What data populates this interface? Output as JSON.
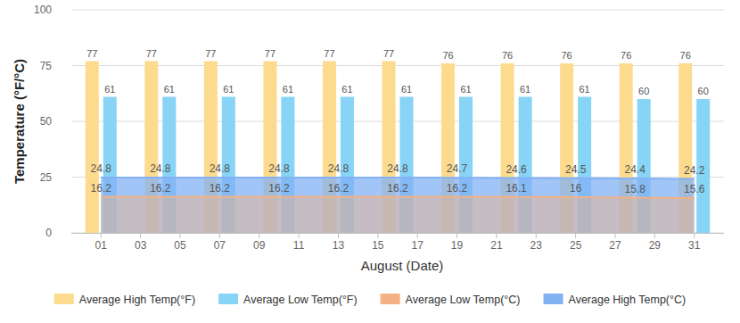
{
  "chart_data": {
    "type": "bar",
    "xlabel": "August (Date)",
    "ylabel": "Temperature (°F/°C)",
    "x": [
      1,
      4,
      7,
      10,
      13,
      16,
      19,
      22,
      25,
      28,
      31
    ],
    "xlim": [
      -0.5,
      32.5
    ],
    "xticks": [
      {
        "value": 1,
        "label": "01"
      },
      {
        "value": 3,
        "label": "03"
      },
      {
        "value": 5,
        "label": "05"
      },
      {
        "value": 7,
        "label": "07"
      },
      {
        "value": 9,
        "label": "09"
      },
      11,
      13,
      15,
      17,
      19,
      21,
      23,
      25,
      27,
      29,
      31
    ],
    "ylim": [
      0,
      100
    ],
    "yticks": [
      0,
      25,
      50,
      75,
      100
    ],
    "grid": true,
    "legend": "bottom",
    "data_labels": true,
    "series": [
      {
        "name": "Average High Temp(°F)",
        "type": "bar",
        "color": "#fddb8e",
        "values": [
          77,
          77,
          77,
          77,
          77,
          77,
          76,
          76,
          76,
          76,
          76
        ]
      },
      {
        "name": "Average Low Temp(°F)",
        "type": "bar",
        "color": "#87d4f6",
        "values": [
          61,
          61,
          61,
          61,
          61,
          61,
          61,
          61,
          61,
          60,
          60
        ]
      },
      {
        "name": "Average Low Temp(°C)",
        "type": "area",
        "color": "#f4b183",
        "values": [
          16.2,
          16.2,
          16.2,
          16.2,
          16.2,
          16.2,
          16.2,
          16.1,
          16,
          15.8,
          15.6
        ]
      },
      {
        "name": "Average High Temp(°C)",
        "type": "area",
        "color": "#82b1f4",
        "values": [
          24.8,
          24.8,
          24.8,
          24.8,
          24.8,
          24.8,
          24.7,
          24.6,
          24.5,
          24.4,
          24.2
        ]
      }
    ]
  }
}
